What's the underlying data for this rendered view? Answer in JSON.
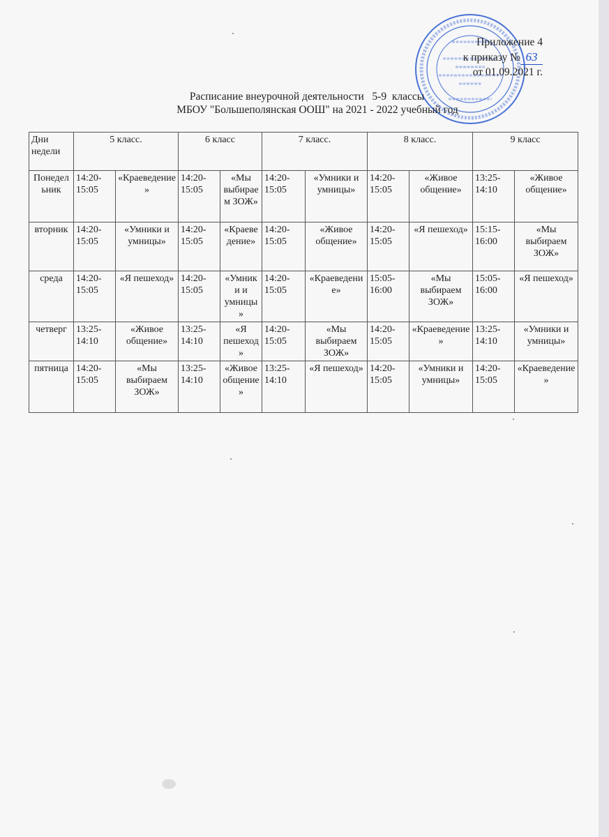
{
  "header": {
    "appendix": "Приложение 4",
    "order_prefix": "к приказу №",
    "order_number": "63",
    "order_date": "от 01.09.2021 г."
  },
  "title": {
    "line1": "Расписание внеурочной деятельности   5-9  классы",
    "line2": "МБОУ \"Большеполянская ООШ\" на 2021 - 2022 учебный год"
  },
  "stamp": {
    "text": "МУНИЦИПАЛЬНОЕ БЮДЖЕТНОЕ ОБЩЕОБРАЗОВАТЕЛЬНОЕ УЧРЕЖДЕНИЕ АЛЕКСЕЕВСКОГО МУНИЦИПАЛЬНОГО РАЙОНА",
    "ogrn": "ОГРН 1021605",
    "inn": "ИНН 1606002975",
    "center": [
      "«Большеполянская",
      "основная",
      "общеобразовательная",
      "школа»"
    ],
    "color": "#2a5bd0"
  },
  "table": {
    "day_header": "Дни недели",
    "classes": [
      "5 класс.",
      "6 класс",
      "7 класс.",
      "8 класс.",
      "9 класс"
    ],
    "rows": [
      {
        "day": "Понедельник",
        "cells": [
          {
            "time": "14:20-15:05",
            "activity": "«Краеведение»"
          },
          {
            "time": "14:20-15:05",
            "activity": "«Мы выбираем ЗОЖ»"
          },
          {
            "time": "14:20-15:05",
            "activity": "«Умники и умницы»"
          },
          {
            "time": "14:20-15:05",
            "activity": "«Живое общение»"
          },
          {
            "time": "13:25-14:10",
            "activity": "«Живое общение»"
          }
        ]
      },
      {
        "day": "вторник",
        "cells": [
          {
            "time": "14:20-15:05",
            "activity": "«Умники и умницы»"
          },
          {
            "time": "14:20-15:05",
            "activity": "«Краеведение»"
          },
          {
            "time": "14:20-15:05",
            "activity": "«Живое общение»"
          },
          {
            "time": "14:20-15:05",
            "activity": "«Я пешеход»"
          },
          {
            "time": "15:15-16:00",
            "activity": "«Мы выбираем ЗОЖ»"
          }
        ]
      },
      {
        "day": "среда",
        "cells": [
          {
            "time": "14:20-15:05",
            "activity": "«Я пешеход»"
          },
          {
            "time": "14:20-15:05",
            "activity": "«Умники и умницы»"
          },
          {
            "time": "14:20-15:05",
            "activity": "«Краеведение»"
          },
          {
            "time": "15:05-16:00",
            "activity": "«Мы выбираем ЗОЖ»"
          },
          {
            "time": "15:05-16:00",
            "activity": "«Я пешеход»"
          }
        ]
      },
      {
        "day": "четверг",
        "cells": [
          {
            "time": "13:25-14:10",
            "activity": "«Живое общение»"
          },
          {
            "time": "13:25-14:10",
            "activity": "«Я пешеход»"
          },
          {
            "time": "14:20-15:05",
            "activity": "«Мы выбираем ЗОЖ»"
          },
          {
            "time": "14:20-15:05",
            "activity": "«Краеведение»"
          },
          {
            "time": "13:25-14:10",
            "activity": "«Умники и умницы»"
          }
        ]
      },
      {
        "day": "пятница",
        "cells": [
          {
            "time": "14:20-15:05",
            "activity": "«Мы выбираем ЗОЖ»"
          },
          {
            "time": "13:25-14:10",
            "activity": "«Живое общение»"
          },
          {
            "time": "13:25-14:10",
            "activity": "«Я пешеход»"
          },
          {
            "time": "14:20-15:05",
            "activity": "«Умники и умницы»"
          },
          {
            "time": "14:20-15:05",
            "activity": "«Краеведение»"
          }
        ]
      }
    ]
  }
}
